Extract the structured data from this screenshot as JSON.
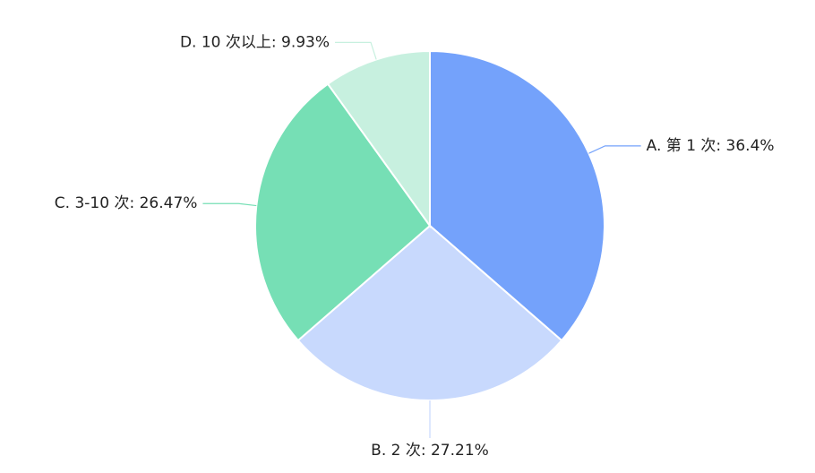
{
  "chart_data": {
    "type": "pie",
    "slices": [
      {
        "label": "A. 第 1 次: 36.4%",
        "value": 36.4,
        "color": "#74a2fb"
      },
      {
        "label": "B. 2 次: 27.21%",
        "value": 27.21,
        "color": "#c8d9fd"
      },
      {
        "label": "C. 3-10 次: 26.47%",
        "value": 26.47,
        "color": "#76dfb5"
      },
      {
        "label": "D. 10 次以上: 9.93%",
        "value": 9.93,
        "color": "#c7f0df"
      }
    ]
  }
}
